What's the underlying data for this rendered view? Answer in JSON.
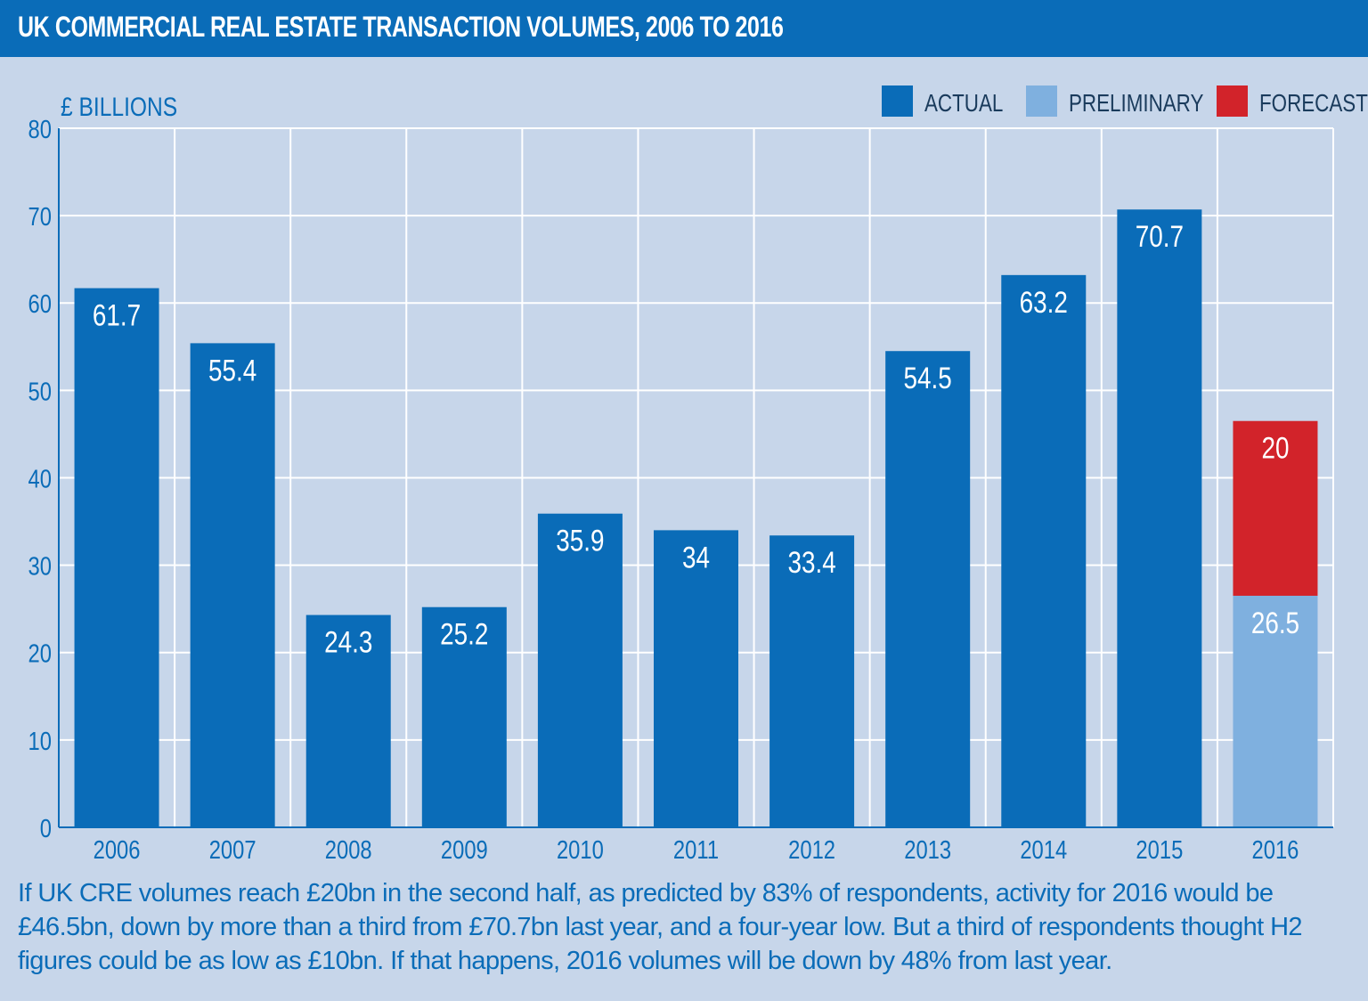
{
  "title": "UK COMMERCIAL REAL ESTATE TRANSACTION VOLUMES, 2006 TO 2016",
  "caption": "If UK CRE volumes reach £20bn in the second half, as predicted by 83% of respondents, activity for 2016 would be £46.5bn, down by more than a third from £70.7bn last year, and a four-year low. But a third of respondents thought H2 figures could be as low as £10bn. If that happens, 2016 volumes will be down by 48% from last year.",
  "colors": {
    "header": "#0a6cb8",
    "background": "#c7d6ea",
    "actual": "#0a6cb8",
    "preliminary": "#7fb0df",
    "forecast": "#d2232a",
    "grid": "#ffffff"
  },
  "chart_data": {
    "type": "bar",
    "stacked": true,
    "ylabel": "£ BILLIONS",
    "ylim": [
      0,
      80
    ],
    "yticks": [
      0,
      10,
      20,
      30,
      40,
      50,
      60,
      70,
      80
    ],
    "grid": true,
    "legend_position": "top-right",
    "legend": [
      {
        "label": "ACTUAL",
        "color": "#0a6cb8"
      },
      {
        "label": "PRELIMINARY",
        "color": "#7fb0df"
      },
      {
        "label": "FORECAST",
        "color": "#d2232a"
      }
    ],
    "categories": [
      "2006",
      "2007",
      "2008",
      "2009",
      "2010",
      "2011",
      "2012",
      "2013",
      "2014",
      "2015",
      "2016"
    ],
    "series": [
      {
        "name": "ACTUAL",
        "values": [
          61.7,
          55.4,
          24.3,
          25.2,
          35.9,
          34,
          33.4,
          54.5,
          63.2,
          70.7,
          null
        ],
        "labels": [
          "61.7",
          "55.4",
          "24.3",
          "25.2",
          "35.9",
          "34",
          "33.4",
          "54.5",
          "63.2",
          "70.7",
          ""
        ]
      },
      {
        "name": "PRELIMINARY",
        "values": [
          null,
          null,
          null,
          null,
          null,
          null,
          null,
          null,
          null,
          null,
          26.5
        ],
        "labels": [
          "",
          "",
          "",
          "",
          "",
          "",
          "",
          "",
          "",
          "",
          "26.5"
        ]
      },
      {
        "name": "FORECAST",
        "values": [
          null,
          null,
          null,
          null,
          null,
          null,
          null,
          null,
          null,
          null,
          20
        ],
        "labels": [
          "",
          "",
          "",
          "",
          "",
          "",
          "",
          "",
          "",
          "",
          "20"
        ]
      }
    ]
  }
}
